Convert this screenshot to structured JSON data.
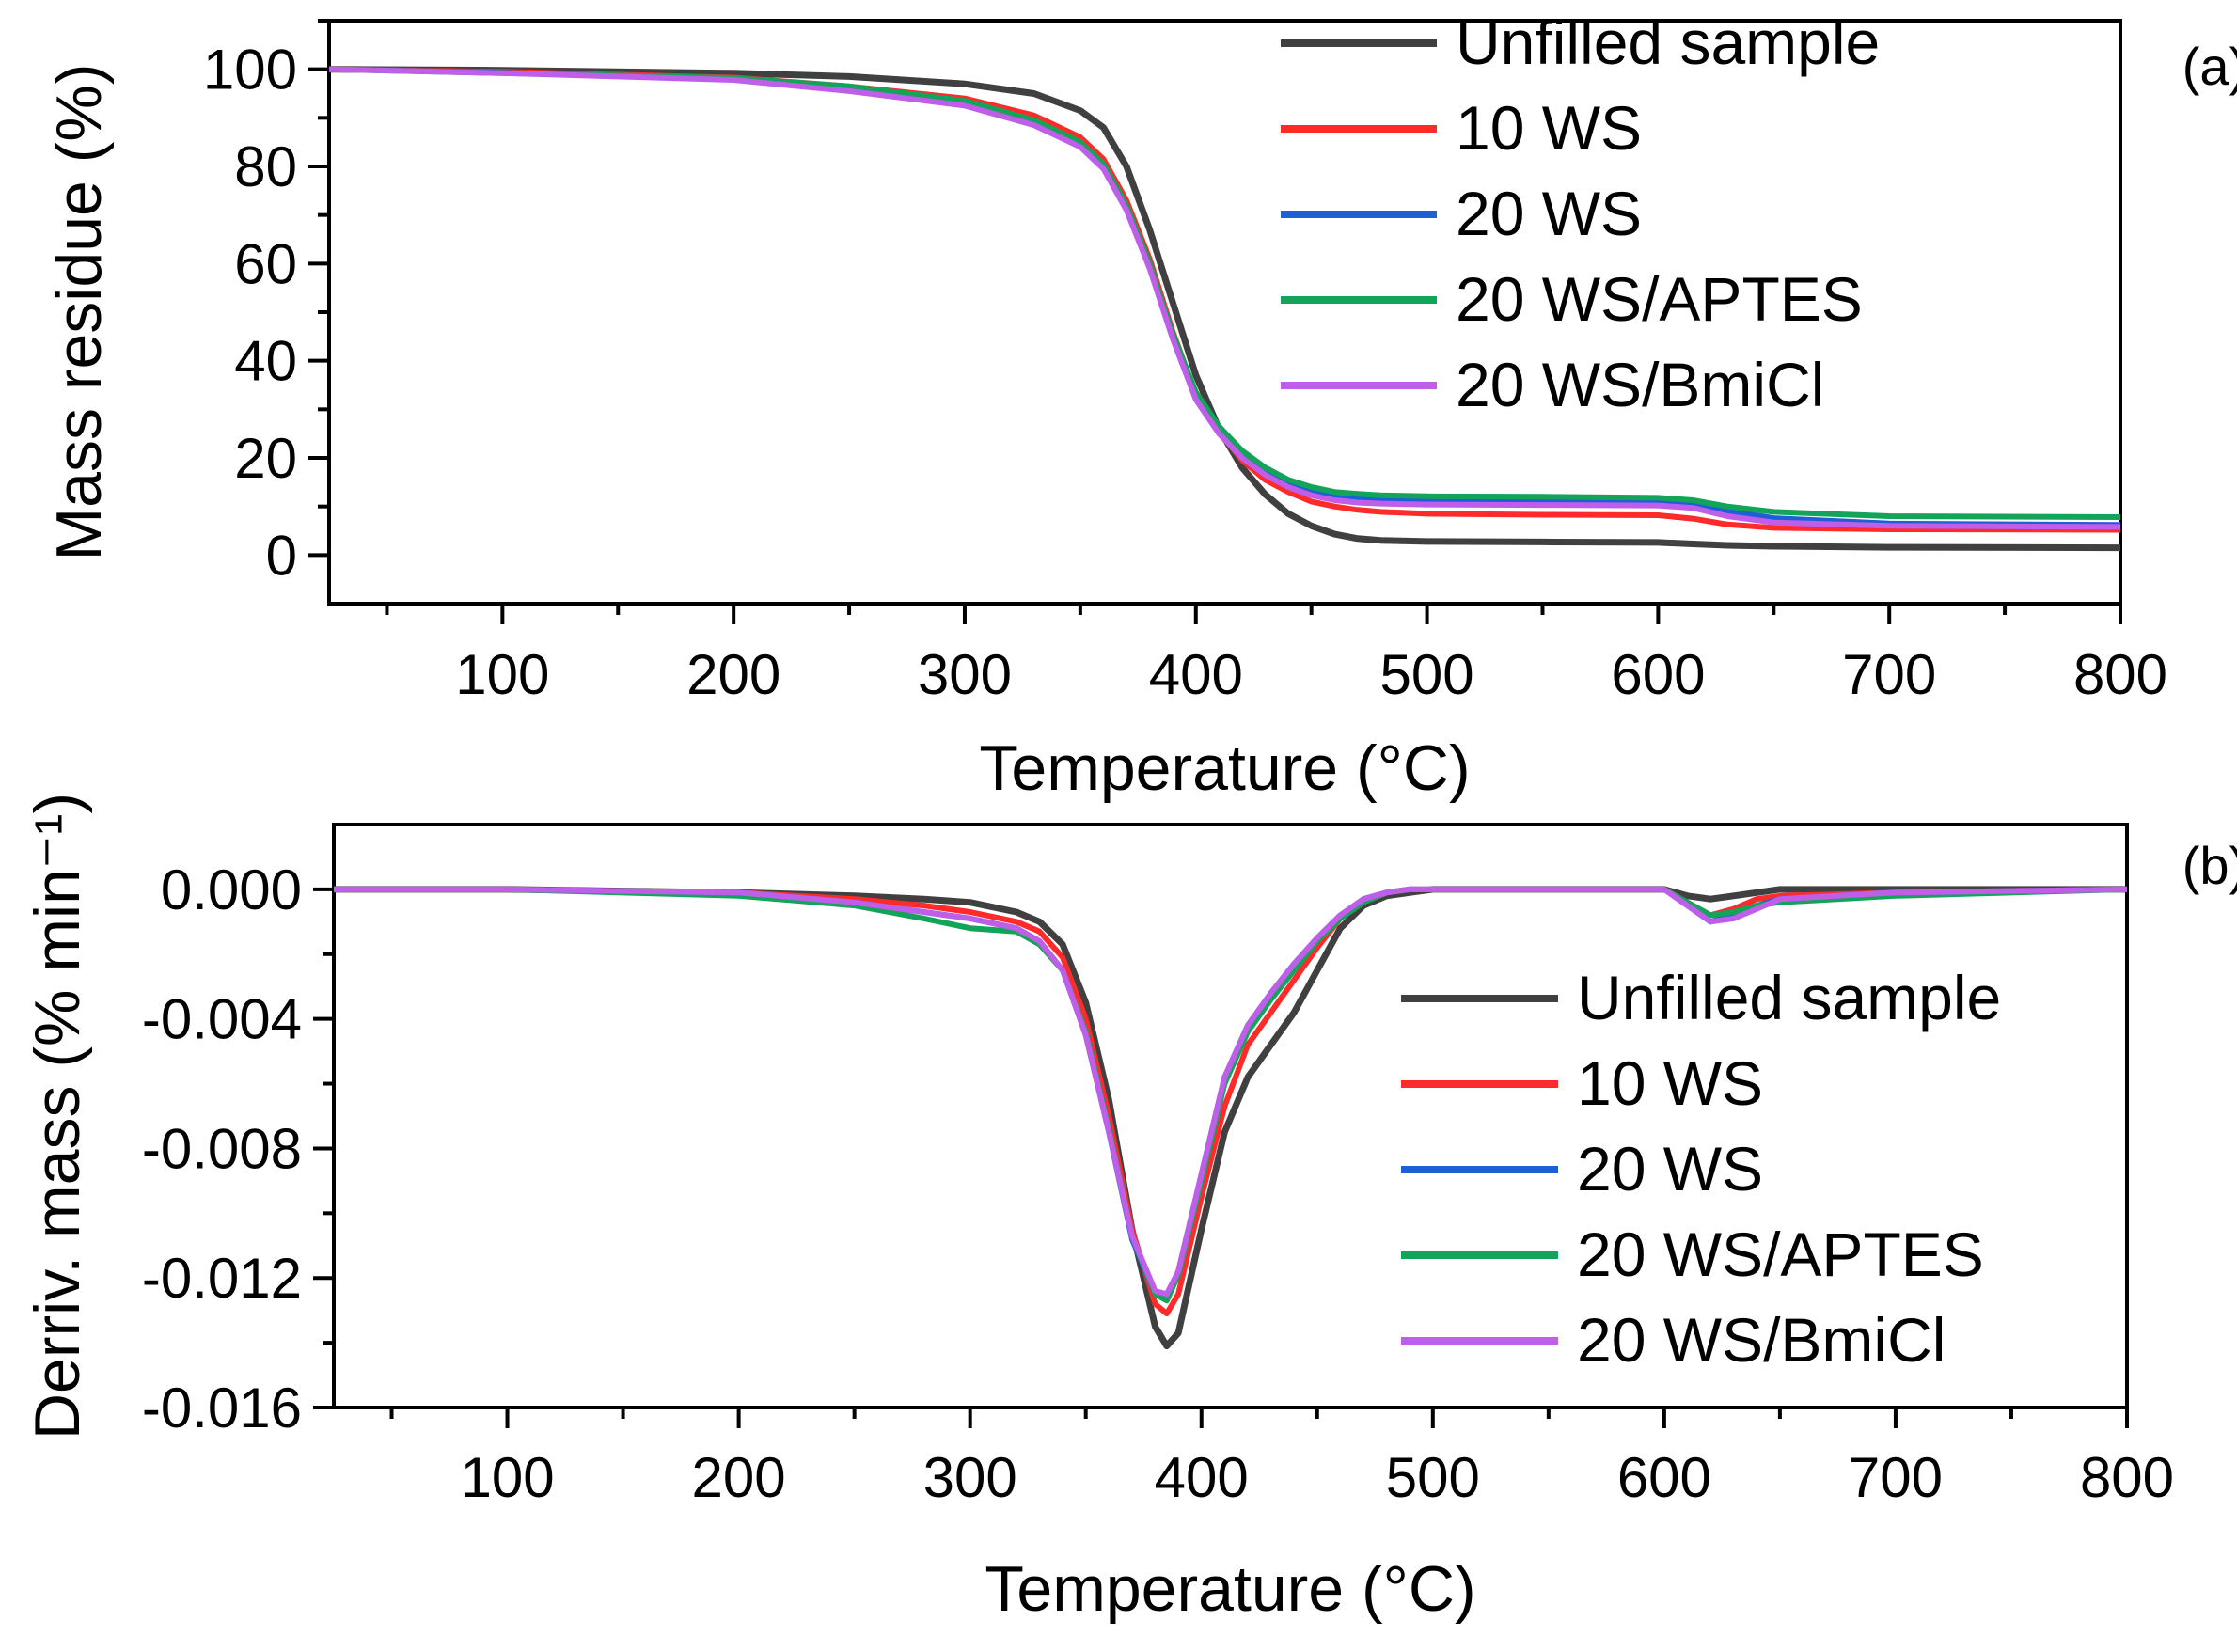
{
  "chart_data": [
    {
      "panel": "(a)",
      "type": "line",
      "xlabel": "Temperature (°C)",
      "ylabel": "Mass residue (%)",
      "xlim": [
        25,
        800
      ],
      "ylim": [
        -10,
        110
      ],
      "xticks": [
        100,
        200,
        300,
        400,
        500,
        600,
        700,
        800
      ],
      "yticks": [
        0,
        20,
        40,
        60,
        80,
        100
      ],
      "xtick_labels": [
        "100",
        "200",
        "300",
        "400",
        "500",
        "600",
        "700",
        "800"
      ],
      "ytick_labels": [
        "0",
        "20",
        "40",
        "60",
        "80",
        "100"
      ],
      "legend_position": "top-right",
      "series": [
        {
          "name": "Unfilled sample",
          "color": "#404040",
          "x": [
            25,
            100,
            200,
            250,
            300,
            330,
            350,
            360,
            370,
            380,
            390,
            400,
            410,
            420,
            430,
            440,
            450,
            460,
            470,
            480,
            500,
            550,
            600,
            615,
            630,
            650,
            700,
            800
          ],
          "y": [
            100,
            99.8,
            99.2,
            98.5,
            97,
            95,
            91.5,
            88,
            80,
            67,
            52,
            37,
            26,
            18,
            12.5,
            8.5,
            6,
            4.3,
            3.4,
            3,
            2.8,
            2.7,
            2.6,
            2.3,
            2.0,
            1.8,
            1.6,
            1.5
          ]
        },
        {
          "name": "10 WS",
          "color": "#ff2a2a",
          "x": [
            25,
            100,
            200,
            250,
            300,
            330,
            350,
            360,
            370,
            380,
            390,
            400,
            410,
            420,
            430,
            440,
            450,
            460,
            470,
            480,
            500,
            550,
            600,
            615,
            630,
            650,
            700,
            800
          ],
          "y": [
            100,
            99.5,
            98.3,
            96.5,
            94,
            90.5,
            86,
            81.5,
            73,
            61,
            46,
            33,
            25.5,
            19.5,
            15.5,
            13,
            11,
            10,
            9.3,
            8.9,
            8.5,
            8.3,
            8.2,
            7.5,
            6.3,
            5.6,
            5.3,
            5.2
          ]
        },
        {
          "name": "20 WS",
          "color": "#1f5fd6",
          "x": [
            25,
            100,
            200,
            250,
            300,
            330,
            350,
            360,
            370,
            380,
            390,
            400,
            410,
            420,
            430,
            440,
            450,
            460,
            470,
            480,
            500,
            550,
            600,
            615,
            630,
            650,
            700,
            800
          ],
          "y": [
            100,
            99.3,
            98,
            96,
            93,
            89,
            84.5,
            80,
            71.5,
            59.5,
            45,
            32.5,
            25.5,
            20.5,
            17.5,
            15,
            13.3,
            12.3,
            11.8,
            11.5,
            11.3,
            11.2,
            11.1,
            10.6,
            9.1,
            7.6,
            6.5,
            6.2
          ]
        },
        {
          "name": "20 WS/APTES",
          "color": "#13a45a",
          "x": [
            25,
            100,
            200,
            250,
            300,
            330,
            350,
            360,
            370,
            380,
            390,
            400,
            410,
            420,
            430,
            440,
            450,
            460,
            470,
            480,
            500,
            550,
            600,
            615,
            630,
            650,
            700,
            800
          ],
          "y": [
            100,
            99.2,
            98.2,
            96.5,
            93.5,
            89.5,
            85,
            80.5,
            72,
            60,
            45.5,
            33.5,
            26.5,
            21.5,
            18,
            15.5,
            14,
            13,
            12.6,
            12.3,
            12.1,
            12,
            11.8,
            11.3,
            10,
            8.9,
            8,
            7.8
          ]
        },
        {
          "name": "20 WS/BmiCl",
          "color": "#bf5ee8",
          "x": [
            25,
            100,
            200,
            250,
            300,
            330,
            350,
            360,
            370,
            380,
            390,
            400,
            410,
            420,
            430,
            440,
            450,
            460,
            470,
            480,
            500,
            550,
            600,
            615,
            630,
            650,
            700,
            800
          ],
          "y": [
            100,
            99.2,
            97.8,
            95.5,
            92.5,
            88.5,
            84,
            79.5,
            71,
            59,
            44.5,
            32,
            25,
            20,
            16.5,
            14,
            12.3,
            11.3,
            10.8,
            10.6,
            10.4,
            10.3,
            10.2,
            9.7,
            8,
            6.7,
            6,
            5.8
          ]
        }
      ]
    },
    {
      "panel": "(b)",
      "type": "line",
      "xlabel": "Temperature (°C)",
      "ylabel": "Derriv. mass (% min⁻¹)",
      "xlim": [
        25,
        800
      ],
      "ylim": [
        -0.016,
        0.002
      ],
      "xticks": [
        100,
        200,
        300,
        400,
        500,
        600,
        700,
        800
      ],
      "yticks": [
        0.0,
        -0.004,
        -0.008,
        -0.012,
        -0.016
      ],
      "xtick_labels": [
        "100",
        "200",
        "300",
        "400",
        "500",
        "600",
        "700",
        "800"
      ],
      "ytick_labels": [
        "0.000",
        "-0.004",
        "-0.008",
        "-0.012",
        "-0.016"
      ],
      "legend_position": "lower-right",
      "series": [
        {
          "name": "Unfilled sample",
          "color": "#404040",
          "x": [
            25,
            100,
            200,
            250,
            280,
            300,
            320,
            330,
            340,
            350,
            360,
            370,
            380,
            385,
            390,
            400,
            410,
            420,
            430,
            440,
            450,
            460,
            470,
            480,
            490,
            500,
            550,
            600,
            610,
            620,
            630,
            640,
            650,
            700,
            800
          ],
          "y": [
            0,
            0,
            -0.0001,
            -0.0002,
            -0.0003,
            -0.0004,
            -0.0007,
            -0.001,
            -0.0017,
            -0.0035,
            -0.0065,
            -0.0105,
            -0.0135,
            -0.0141,
            -0.0137,
            -0.0105,
            -0.0075,
            -0.0058,
            -0.0048,
            -0.0038,
            -0.0025,
            -0.0012,
            -0.0005,
            -0.0002,
            -0.0001,
            0,
            0,
            0,
            -0.0002,
            -0.0003,
            -0.0002,
            -0.0001,
            0,
            0,
            0
          ]
        },
        {
          "name": "10 WS",
          "color": "#ff2a2a",
          "x": [
            25,
            100,
            200,
            250,
            280,
            300,
            320,
            330,
            340,
            350,
            360,
            370,
            380,
            385,
            390,
            400,
            410,
            420,
            430,
            440,
            450,
            460,
            470,
            480,
            490,
            500,
            550,
            600,
            610,
            620,
            630,
            640,
            650,
            700,
            800
          ],
          "y": [
            0,
            0,
            -0.0001,
            -0.0003,
            -0.0005,
            -0.0007,
            -0.001,
            -0.0013,
            -0.0021,
            -0.004,
            -0.007,
            -0.0105,
            -0.0128,
            -0.0131,
            -0.0125,
            -0.0095,
            -0.0067,
            -0.0048,
            -0.0038,
            -0.0028,
            -0.0018,
            -0.0009,
            -0.0004,
            -0.0001,
            0,
            0,
            0,
            0,
            -0.0004,
            -0.0008,
            -0.0006,
            -0.0003,
            -0.0002,
            -0.0001,
            0
          ]
        },
        {
          "name": "20 WS",
          "color": "#1f5fd6",
          "x": [
            25,
            100,
            200,
            250,
            280,
            300,
            320,
            330,
            340,
            350,
            360,
            370,
            380,
            385,
            390,
            400,
            410,
            420,
            430,
            440,
            450,
            460,
            470,
            480,
            490,
            500,
            550,
            600,
            610,
            620,
            630,
            640,
            650,
            700,
            800
          ],
          "y": [
            0,
            0,
            -0.0001,
            -0.0004,
            -0.0007,
            -0.0009,
            -0.0012,
            -0.0016,
            -0.0025,
            -0.0045,
            -0.0075,
            -0.0108,
            -0.0125,
            -0.0126,
            -0.0118,
            -0.0088,
            -0.0058,
            -0.0042,
            -0.0032,
            -0.0023,
            -0.0015,
            -0.0008,
            -0.0003,
            -0.0001,
            0,
            0,
            0,
            0,
            -0.0005,
            -0.001,
            -0.0008,
            -0.0005,
            -0.0003,
            -0.0001,
            0
          ]
        },
        {
          "name": "20 WS/APTES",
          "color": "#13a45a",
          "x": [
            25,
            100,
            200,
            250,
            280,
            300,
            320,
            330,
            340,
            350,
            360,
            370,
            380,
            385,
            390,
            400,
            410,
            420,
            430,
            440,
            450,
            460,
            470,
            480,
            490,
            500,
            550,
            600,
            610,
            620,
            630,
            640,
            650,
            700,
            800
          ],
          "y": [
            0,
            0,
            -0.0002,
            -0.0005,
            -0.0009,
            -0.0012,
            -0.0013,
            -0.0017,
            -0.0025,
            -0.0044,
            -0.0074,
            -0.0107,
            -0.0125,
            -0.0127,
            -0.0119,
            -0.009,
            -0.006,
            -0.0044,
            -0.0034,
            -0.0025,
            -0.0016,
            -0.0009,
            -0.0004,
            -0.0001,
            0,
            0,
            0,
            0,
            -0.0004,
            -0.0008,
            -0.0007,
            -0.0005,
            -0.0004,
            -0.0002,
            0
          ]
        },
        {
          "name": "20 WS/BmiCl",
          "color": "#bf5ee8",
          "x": [
            25,
            100,
            200,
            250,
            280,
            300,
            320,
            330,
            340,
            350,
            360,
            370,
            380,
            385,
            390,
            400,
            410,
            420,
            430,
            440,
            450,
            460,
            470,
            480,
            490,
            500,
            550,
            600,
            610,
            620,
            630,
            640,
            650,
            700,
            800
          ],
          "y": [
            0,
            0,
            -0.0001,
            -0.0004,
            -0.0007,
            -0.0009,
            -0.0012,
            -0.0016,
            -0.0025,
            -0.0045,
            -0.0075,
            -0.0107,
            -0.0124,
            -0.0125,
            -0.0118,
            -0.0088,
            -0.0058,
            -0.0042,
            -0.0032,
            -0.0023,
            -0.0015,
            -0.0008,
            -0.0003,
            -0.0001,
            0,
            0,
            0,
            0,
            -0.0005,
            -0.001,
            -0.0009,
            -0.0006,
            -0.0003,
            -0.0001,
            0
          ]
        }
      ]
    }
  ]
}
